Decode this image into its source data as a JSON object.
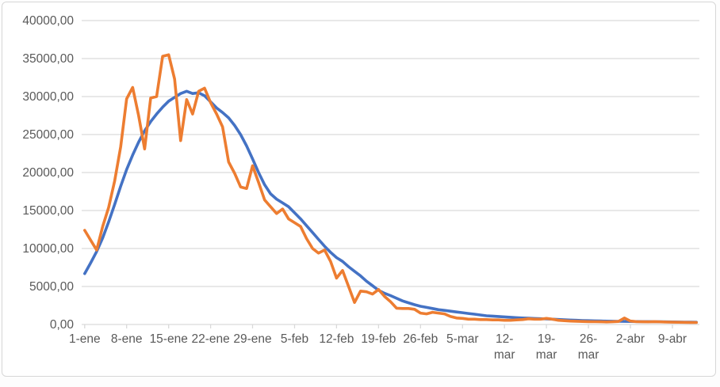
{
  "chart_data": {
    "type": "line",
    "title": "",
    "xlabel": "",
    "ylabel": "",
    "ylim": [
      0,
      40000
    ],
    "grid": true,
    "legend": "none",
    "grid_color": "#d9d9d9",
    "text_color": "#595959",
    "y_ticks": [
      {
        "value": 0,
        "label": "0,00"
      },
      {
        "value": 5000,
        "label": "5000,00"
      },
      {
        "value": 10000,
        "label": "10000,00"
      },
      {
        "value": 15000,
        "label": "15000,00"
      },
      {
        "value": 20000,
        "label": "20000,00"
      },
      {
        "value": 25000,
        "label": "25000,00"
      },
      {
        "value": 30000,
        "label": "30000,00"
      },
      {
        "value": 35000,
        "label": "35000,00"
      },
      {
        "value": 40000,
        "label": "40000,00"
      }
    ],
    "x_ticks": [
      {
        "index": 0,
        "label": "1-ene"
      },
      {
        "index": 7,
        "label": "8-ene"
      },
      {
        "index": 14,
        "label": "15-ene"
      },
      {
        "index": 21,
        "label": "22-ene"
      },
      {
        "index": 28,
        "label": "29-ene"
      },
      {
        "index": 35,
        "label": "5-feb"
      },
      {
        "index": 42,
        "label": "12-feb"
      },
      {
        "index": 49,
        "label": "19-feb"
      },
      {
        "index": 56,
        "label": "26-feb"
      },
      {
        "index": 63,
        "label": "5-mar"
      },
      {
        "index": 70,
        "label": "12-",
        "label2": "mar"
      },
      {
        "index": 77,
        "label": "19-",
        "label2": "mar"
      },
      {
        "index": 84,
        "label": "26-",
        "label2": "mar"
      },
      {
        "index": 91,
        "label": "2-abr"
      },
      {
        "index": 98,
        "label": "9-abr"
      }
    ],
    "x": [
      "1-ene",
      "2-ene",
      "3-ene",
      "4-ene",
      "5-ene",
      "6-ene",
      "7-ene",
      "8-ene",
      "9-ene",
      "10-ene",
      "11-ene",
      "12-ene",
      "13-ene",
      "14-ene",
      "15-ene",
      "16-ene",
      "17-ene",
      "18-ene",
      "19-ene",
      "20-ene",
      "21-ene",
      "22-ene",
      "23-ene",
      "24-ene",
      "25-ene",
      "26-ene",
      "27-ene",
      "28-ene",
      "29-ene",
      "30-ene",
      "31-ene",
      "1-feb",
      "2-feb",
      "3-feb",
      "4-feb",
      "5-feb",
      "6-feb",
      "7-feb",
      "8-feb",
      "9-feb",
      "10-feb",
      "11-feb",
      "12-feb",
      "13-feb",
      "14-feb",
      "15-feb",
      "16-feb",
      "17-feb",
      "18-feb",
      "19-feb",
      "20-feb",
      "21-feb",
      "22-feb",
      "23-feb",
      "24-feb",
      "25-feb",
      "26-feb",
      "27-feb",
      "28-feb",
      "1-mar",
      "2-mar",
      "3-mar",
      "4-mar",
      "5-mar",
      "6-mar",
      "7-mar",
      "8-mar",
      "9-mar",
      "10-mar",
      "11-mar",
      "12-mar",
      "13-mar",
      "14-mar",
      "15-mar",
      "16-mar",
      "17-mar",
      "18-mar",
      "19-mar",
      "20-mar",
      "21-mar",
      "22-mar",
      "23-mar",
      "24-mar",
      "25-mar",
      "26-mar",
      "27-mar",
      "28-mar",
      "29-mar",
      "30-mar",
      "31-mar",
      "1-abr",
      "2-abr",
      "3-abr",
      "4-abr",
      "5-abr",
      "6-abr",
      "7-abr",
      "8-abr",
      "9-abr",
      "10-abr",
      "11-abr",
      "12-abr",
      "13-abr"
    ],
    "series": [
      {
        "name": "blue",
        "color": "#4472c4",
        "values": [
          6700,
          8100,
          9600,
          11400,
          13500,
          15800,
          18200,
          20400,
          22300,
          24000,
          25500,
          26700,
          27700,
          28600,
          29400,
          29900,
          30400,
          30700,
          30400,
          30500,
          30100,
          29300,
          28500,
          27900,
          27200,
          26200,
          25000,
          23500,
          21800,
          20000,
          18400,
          17200,
          16500,
          16000,
          15500,
          14700,
          13900,
          13000,
          12100,
          11200,
          10300,
          9500,
          8800,
          8300,
          7600,
          7000,
          6400,
          5700,
          5100,
          4500,
          4100,
          3800,
          3450,
          3100,
          2850,
          2600,
          2400,
          2250,
          2100,
          1950,
          1850,
          1750,
          1650,
          1550,
          1450,
          1350,
          1250,
          1150,
          1100,
          1050,
          1000,
          950,
          900,
          850,
          820,
          790,
          760,
          730,
          700,
          660,
          620,
          580,
          550,
          520,
          500,
          480,
          460,
          440,
          430,
          420,
          410,
          400,
          390,
          380,
          370,
          360,
          350,
          340,
          330,
          320,
          310,
          300,
          290
        ]
      },
      {
        "name": "orange",
        "color": "#ed7d31",
        "values": [
          12400,
          11100,
          9800,
          12900,
          15400,
          18900,
          23400,
          29700,
          31200,
          27500,
          23100,
          29800,
          30000,
          35300,
          35500,
          32300,
          24200,
          29600,
          27700,
          30700,
          31100,
          29200,
          27700,
          26000,
          21400,
          19900,
          18100,
          17900,
          20900,
          18700,
          16400,
          15500,
          14600,
          15200,
          13900,
          13400,
          12900,
          11300,
          10000,
          9400,
          9800,
          8300,
          6100,
          7100,
          5000,
          2900,
          4400,
          4300,
          4000,
          4600,
          3700,
          3000,
          2150,
          2100,
          2100,
          2000,
          1500,
          1400,
          1600,
          1500,
          1400,
          1050,
          850,
          800,
          700,
          700,
          650,
          650,
          600,
          600,
          550,
          550,
          600,
          650,
          750,
          700,
          700,
          800,
          700,
          550,
          500,
          450,
          430,
          400,
          380,
          360,
          350,
          330,
          350,
          400,
          850,
          450,
          380,
          350,
          340,
          380,
          340,
          320,
          300,
          290,
          280,
          270,
          260
        ]
      }
    ]
  }
}
